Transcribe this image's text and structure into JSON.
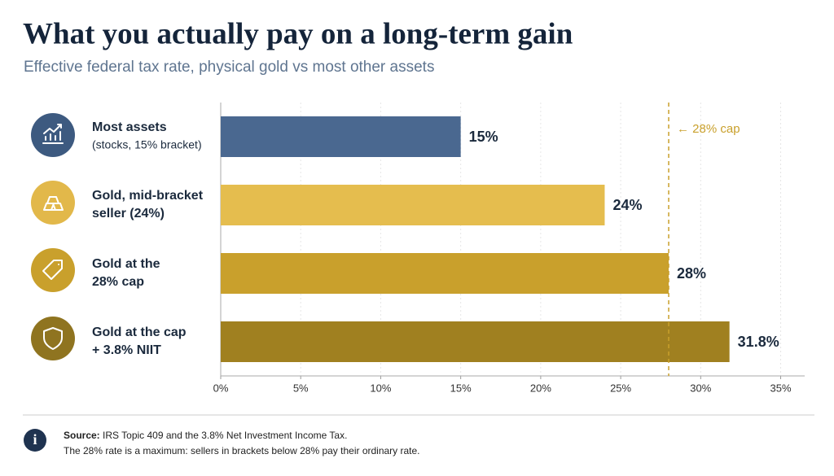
{
  "chart_data": {
    "type": "bar",
    "orientation": "horizontal",
    "title": "What you actually pay on a long-term gain",
    "subtitle": "Effective federal tax rate, physical gold vs most other assets",
    "categories": [
      [
        "Most assets",
        "(stocks, 15% bracket)"
      ],
      [
        "Gold, mid-bracket",
        "seller (24%)"
      ],
      [
        "Gold at the",
        "28% cap"
      ],
      [
        "Gold at the cap",
        "+ 3.8% NIIT"
      ]
    ],
    "values": [
      15,
      24,
      28,
      31.8
    ],
    "value_labels": [
      "15%",
      "24%",
      "28%",
      "31.8%"
    ],
    "colors": [
      "#4a6890",
      "#e5bd4e",
      "#c9a02c",
      "#a08020"
    ],
    "xlim": [
      0,
      36.5
    ],
    "xticks": [
      {
        "value": 0,
        "label": "0%"
      },
      {
        "value": 5,
        "label": "5%"
      },
      {
        "value": 10,
        "label": "10%"
      },
      {
        "value": 15,
        "label": "15%"
      },
      {
        "value": 20,
        "label": "20%"
      },
      {
        "value": 25,
        "label": "25%"
      },
      {
        "value": 30,
        "label": "30%"
      },
      {
        "value": 35,
        "label": "35%"
      }
    ],
    "grid": true,
    "reference_line": {
      "value": 28,
      "label": "← 28% cap",
      "color": "#c9a02c"
    }
  },
  "footer": {
    "source_label": "Source:",
    "source_text": "IRS Topic 409 and the 3.8% Net Investment Income Tax.",
    "note": "The 28% rate is a maximum: sellers in brackets below 28% pay their ordinary rate."
  }
}
